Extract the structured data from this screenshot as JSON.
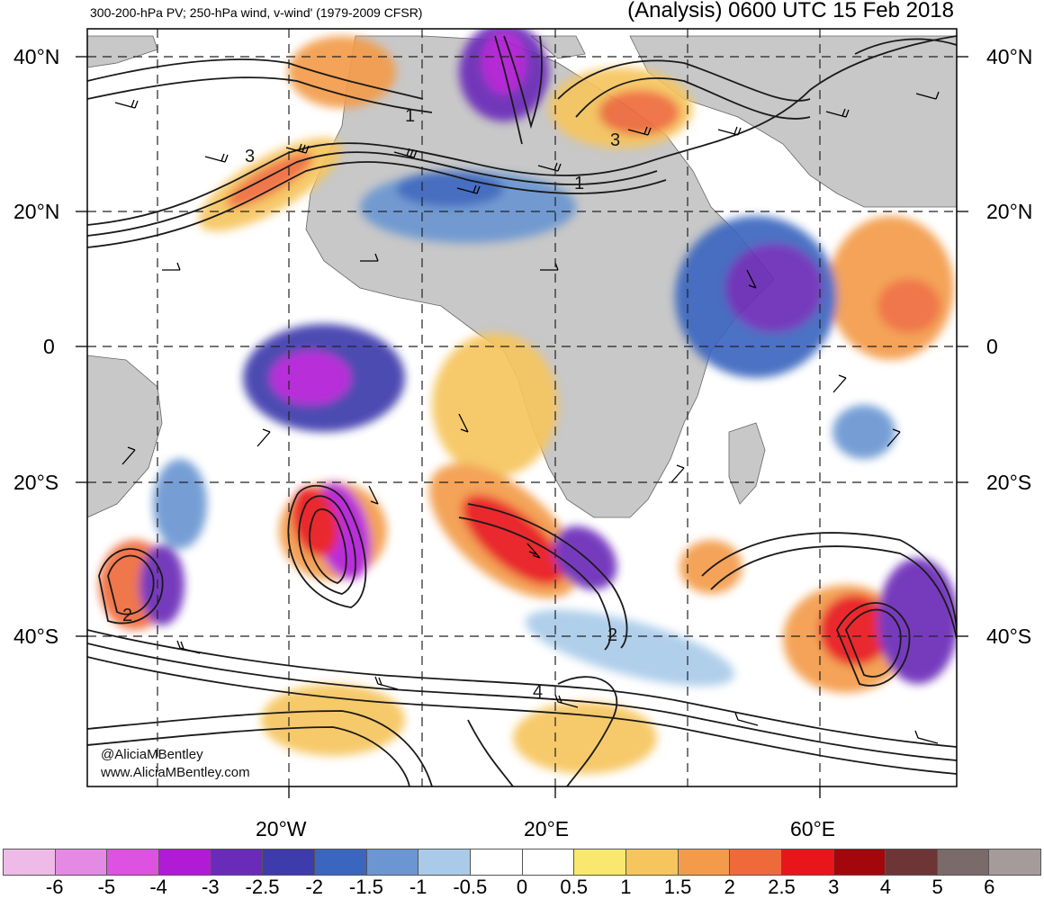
{
  "header": {
    "left_title": "300-200-hPa PV; 250-hPa wind, v-wind' (1979-2009 CFSR)",
    "right_title": "(Analysis) 0600 UTC 15 Feb 2018"
  },
  "map": {
    "lat_labels": [
      "40°N",
      "20°N",
      "0",
      "20°S",
      "40°S"
    ],
    "lon_labels": [
      "20°W",
      "20°E",
      "60°E"
    ],
    "contour_labels": [
      "3",
      "1",
      "3",
      "1",
      "2",
      "2",
      "4"
    ],
    "credit_line1": "@AliciaMBentley",
    "credit_line2": "www.AliciaMBentley.com",
    "land_color": "#c8c8c8",
    "contour_color": "#1a1a1a"
  },
  "colorbar": {
    "colors": [
      "#eebbe8",
      "#e58ae4",
      "#dd52e0",
      "#b21bd6",
      "#6a2bb8",
      "#3e3bac",
      "#3b66bf",
      "#6b96d2",
      "#a9cbe9",
      "#ffffff",
      "#ffffff",
      "#fae86e",
      "#f6c55d",
      "#f39b4a",
      "#ef6a3a",
      "#e8161b",
      "#a3070b",
      "#6e3536",
      "#7a6a6a",
      "#a59b9b"
    ],
    "ticks": [
      "-6",
      "-5",
      "-4",
      "-3",
      "-2.5",
      "-2",
      "-1.5",
      "-1",
      "-0.5",
      "0",
      "0.5",
      "1",
      "1.5",
      "2",
      "2.5",
      "3",
      "4",
      "5",
      "6"
    ]
  }
}
